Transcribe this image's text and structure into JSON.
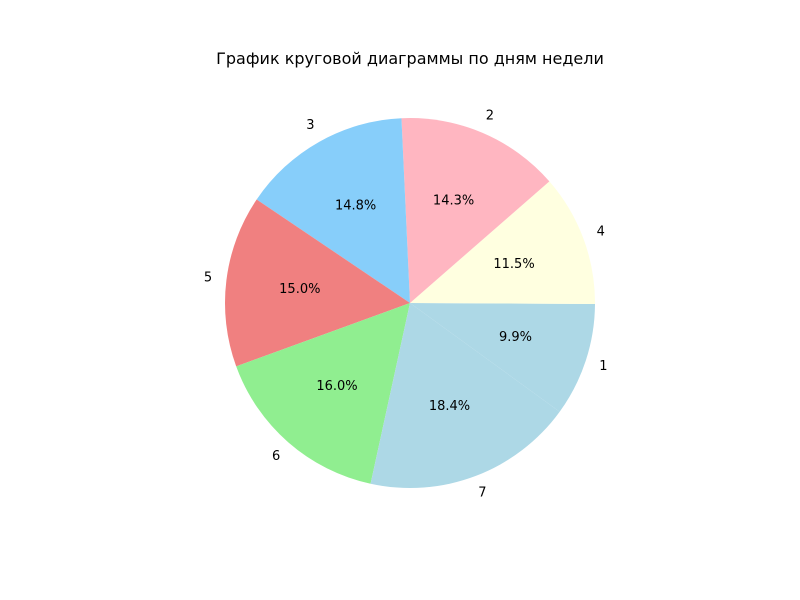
{
  "chart_data": {
    "type": "pie",
    "title": "График круговой диаграммы по дням недели",
    "slices": [
      {
        "label": "1",
        "pct_label": "9.9%",
        "value": 9.9,
        "color": "#add8e6"
      },
      {
        "label": "4",
        "pct_label": "11.5%",
        "value": 11.5,
        "color": "#ffffe0"
      },
      {
        "label": "2",
        "pct_label": "14.3%",
        "value": 14.3,
        "color": "#ffb6c1"
      },
      {
        "label": "3",
        "pct_label": "14.8%",
        "value": 14.8,
        "color": "#87cefa"
      },
      {
        "label": "5",
        "pct_label": "15.0%",
        "value": 15.0,
        "color": "#f08080"
      },
      {
        "label": "6",
        "pct_label": "16.0%",
        "value": 16.0,
        "color": "#90ee90"
      },
      {
        "label": "7",
        "pct_label": "18.4%",
        "value": 18.4,
        "color": "#add8e6"
      }
    ]
  }
}
